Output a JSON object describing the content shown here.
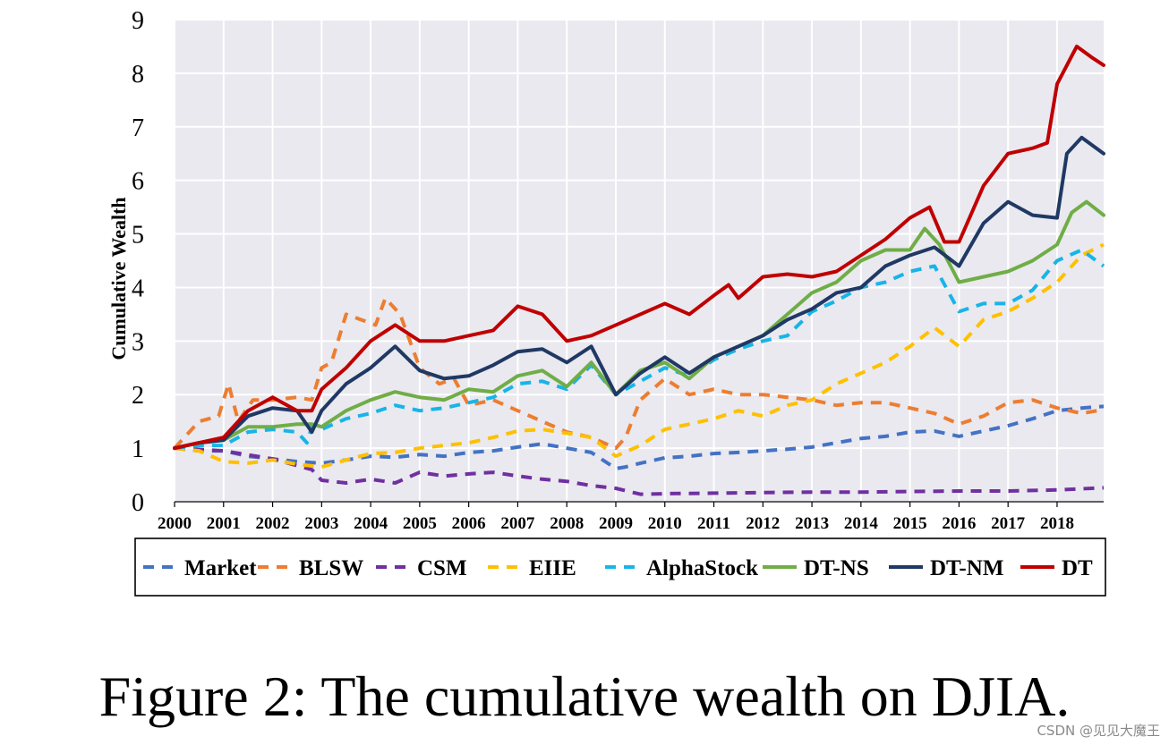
{
  "caption": "Figure 2: The cumulative wealth on DJIA.",
  "watermark": "CSDN @见见大魔王",
  "chart_data": {
    "type": "line",
    "title": "",
    "xlabel": "",
    "ylabel": "Cumulative Wealth",
    "ylim": [
      0,
      9
    ],
    "xlim": [
      2000,
      2018.95
    ],
    "yticks": [
      "0",
      "1",
      "2",
      "3",
      "4",
      "5",
      "6",
      "7",
      "8",
      "9"
    ],
    "xticks": [
      "2000",
      "2001",
      "2002",
      "2003",
      "2004",
      "2005",
      "2006",
      "2007",
      "2008",
      "2009",
      "2010",
      "2011",
      "2012",
      "2013",
      "2014",
      "2015",
      "2016",
      "2017",
      "2018"
    ],
    "grid": true,
    "legend_position": "bottom",
    "series": [
      {
        "name": "Market",
        "color": "#4472c4",
        "dash": "dashed",
        "x": [
          2000,
          2000.5,
          2001,
          2001.5,
          2002,
          2002.5,
          2003,
          2003.5,
          2004,
          2004.5,
          2005,
          2005.5,
          2006,
          2006.5,
          2007,
          2007.5,
          2008,
          2008.5,
          2009,
          2009.2,
          2009.5,
          2010,
          2010.5,
          2011,
          2011.5,
          2012,
          2012.5,
          2013,
          2013.5,
          2014,
          2014.5,
          2015,
          2015.5,
          2016,
          2016.5,
          2017,
          2017.5,
          2018,
          2018.5,
          2018.95
        ],
        "y": [
          1,
          0.95,
          0.95,
          0.85,
          0.8,
          0.75,
          0.72,
          0.78,
          0.85,
          0.83,
          0.88,
          0.85,
          0.92,
          0.95,
          1.02,
          1.08,
          1.0,
          0.92,
          0.62,
          0.65,
          0.72,
          0.82,
          0.85,
          0.9,
          0.92,
          0.95,
          0.98,
          1.02,
          1.1,
          1.18,
          1.22,
          1.3,
          1.32,
          1.22,
          1.32,
          1.42,
          1.55,
          1.7,
          1.75,
          1.78
        ]
      },
      {
        "name": "BLSW",
        "color": "#ed7d31",
        "dash": "dashed",
        "x": [
          2000,
          2000.5,
          2000.9,
          2001.1,
          2001.3,
          2001.6,
          2002,
          2002.5,
          2002.8,
          2003,
          2003.2,
          2003.5,
          2003.8,
          2004.1,
          2004.3,
          2004.6,
          2005,
          2005.4,
          2005.7,
          2006,
          2006.5,
          2007,
          2007.5,
          2008,
          2008.5,
          2009,
          2009.2,
          2009.5,
          2010,
          2010.5,
          2011,
          2011.5,
          2012,
          2012.5,
          2013,
          2013.5,
          2014,
          2014.5,
          2015,
          2015.5,
          2016,
          2016.5,
          2017,
          2017.5,
          2018,
          2018.5,
          2018.95
        ],
        "y": [
          1,
          1.5,
          1.6,
          2.2,
          1.5,
          1.9,
          1.9,
          1.95,
          1.9,
          2.5,
          2.6,
          3.5,
          3.4,
          3.3,
          3.8,
          3.5,
          2.5,
          2.2,
          2.3,
          1.8,
          1.9,
          1.7,
          1.5,
          1.3,
          1.2,
          1.0,
          1.2,
          1.9,
          2.3,
          2.0,
          2.1,
          2.0,
          2.0,
          1.95,
          1.9,
          1.8,
          1.85,
          1.85,
          1.75,
          1.65,
          1.45,
          1.6,
          1.85,
          1.9,
          1.75,
          1.65,
          1.72
        ]
      },
      {
        "name": "CSM",
        "color": "#7030a0",
        "dash": "dashed",
        "x": [
          2000,
          2001,
          2002,
          2002.8,
          2003,
          2003.5,
          2004,
          2004.5,
          2005,
          2005.5,
          2006,
          2006.5,
          2007,
          2007.5,
          2008,
          2008.5,
          2009,
          2009.5,
          2010,
          2011,
          2012,
          2013,
          2014,
          2015,
          2016,
          2017,
          2018,
          2018.95
        ],
        "y": [
          1,
          0.95,
          0.8,
          0.6,
          0.4,
          0.35,
          0.42,
          0.35,
          0.55,
          0.48,
          0.52,
          0.55,
          0.48,
          0.42,
          0.38,
          0.3,
          0.25,
          0.14,
          0.15,
          0.16,
          0.17,
          0.18,
          0.18,
          0.19,
          0.2,
          0.2,
          0.22,
          0.26
        ]
      },
      {
        "name": "EIIE",
        "color": "#ffc000",
        "dash": "dashed",
        "x": [
          2000,
          2000.5,
          2001,
          2001.5,
          2002,
          2002.5,
          2003,
          2003.5,
          2004,
          2004.5,
          2005,
          2005.5,
          2006,
          2006.5,
          2007,
          2007.5,
          2008,
          2008.5,
          2009,
          2009.5,
          2010,
          2010.5,
          2011,
          2011.5,
          2012,
          2012.5,
          2013,
          2013.5,
          2014,
          2014.5,
          2015,
          2015.5,
          2016,
          2016.5,
          2017,
          2017.5,
          2018,
          2018.5,
          2018.95
        ],
        "y": [
          1,
          0.95,
          0.75,
          0.72,
          0.78,
          0.7,
          0.65,
          0.78,
          0.9,
          0.92,
          1.0,
          1.05,
          1.1,
          1.2,
          1.32,
          1.35,
          1.28,
          1.2,
          0.85,
          1.05,
          1.35,
          1.45,
          1.55,
          1.7,
          1.6,
          1.8,
          1.9,
          2.2,
          2.4,
          2.6,
          2.9,
          3.25,
          2.9,
          3.4,
          3.55,
          3.8,
          4.1,
          4.6,
          4.8
        ]
      },
      {
        "name": "AlphaStock",
        "color": "#18b4e8",
        "dash": "dashed",
        "x": [
          2000,
          2000.5,
          2001,
          2001.5,
          2002,
          2002.5,
          2002.7,
          2002.8,
          2003,
          2003.5,
          2004,
          2004.5,
          2005,
          2005.5,
          2006,
          2006.5,
          2007,
          2007.5,
          2008,
          2008.5,
          2009,
          2009.5,
          2010,
          2010.5,
          2011,
          2011.5,
          2012,
          2012.5,
          2013,
          2013.5,
          2014,
          2014.5,
          2015,
          2015.5,
          2016,
          2016.5,
          2017,
          2017.5,
          2018,
          2018.5,
          2018.95
        ],
        "y": [
          1,
          1.05,
          1.05,
          1.3,
          1.35,
          1.3,
          1.1,
          1.4,
          1.35,
          1.55,
          1.65,
          1.8,
          1.7,
          1.75,
          1.85,
          1.95,
          2.2,
          2.25,
          2.1,
          2.55,
          2.0,
          2.25,
          2.5,
          2.35,
          2.65,
          2.85,
          3.0,
          3.1,
          3.55,
          3.75,
          4.0,
          4.1,
          4.3,
          4.4,
          3.55,
          3.7,
          3.7,
          3.95,
          4.5,
          4.7,
          4.4
        ]
      },
      {
        "name": "DT-NS",
        "color": "#70ad47",
        "dash": "solid",
        "x": [
          2000,
          2000.5,
          2001,
          2001.5,
          2002,
          2002.5,
          2002.8,
          2003,
          2003.5,
          2004,
          2004.5,
          2005,
          2005.5,
          2006,
          2006.5,
          2007,
          2007.5,
          2008,
          2008.5,
          2009,
          2009.5,
          2010,
          2010.5,
          2011,
          2011.5,
          2012,
          2012.5,
          2013,
          2013.5,
          2014,
          2014.5,
          2015,
          2015.3,
          2015.6,
          2016,
          2016.5,
          2017,
          2017.5,
          2018,
          2018.3,
          2018.6,
          2018.95
        ],
        "y": [
          1,
          1.1,
          1.15,
          1.4,
          1.4,
          1.45,
          1.45,
          1.4,
          1.7,
          1.9,
          2.05,
          1.95,
          1.9,
          2.1,
          2.05,
          2.35,
          2.45,
          2.15,
          2.6,
          2.0,
          2.45,
          2.6,
          2.3,
          2.7,
          2.9,
          3.1,
          3.5,
          3.9,
          4.1,
          4.5,
          4.7,
          4.7,
          5.1,
          4.8,
          4.1,
          4.2,
          4.3,
          4.5,
          4.8,
          5.4,
          5.6,
          5.35
        ]
      },
      {
        "name": "DT-NM",
        "color": "#203864",
        "dash": "solid",
        "x": [
          2000,
          2000.5,
          2001,
          2001.5,
          2002,
          2002.5,
          2002.8,
          2003,
          2003.5,
          2004,
          2004.5,
          2005,
          2005.5,
          2006,
          2006.5,
          2007,
          2007.5,
          2008,
          2008.5,
          2009,
          2009.5,
          2010,
          2010.5,
          2011,
          2011.5,
          2012,
          2012.5,
          2013,
          2013.5,
          2014,
          2014.5,
          2015,
          2015.5,
          2016,
          2016.5,
          2017,
          2017.5,
          2018,
          2018.2,
          2018.5,
          2018.95
        ],
        "y": [
          1,
          1.1,
          1.15,
          1.6,
          1.75,
          1.7,
          1.3,
          1.7,
          2.2,
          2.5,
          2.9,
          2.45,
          2.3,
          2.35,
          2.55,
          2.8,
          2.85,
          2.6,
          2.9,
          2.0,
          2.4,
          2.7,
          2.4,
          2.7,
          2.9,
          3.1,
          3.4,
          3.6,
          3.9,
          4.0,
          4.4,
          4.6,
          4.75,
          4.4,
          5.2,
          5.6,
          5.35,
          5.3,
          6.5,
          6.8,
          6.5
        ]
      },
      {
        "name": "DT",
        "color": "#c00000",
        "dash": "solid",
        "x": [
          2000,
          2000.5,
          2001,
          2001.5,
          2002,
          2002.5,
          2002.8,
          2003,
          2003.5,
          2004,
          2004.5,
          2005,
          2005.5,
          2006,
          2006.5,
          2007,
          2007.5,
          2008,
          2008.5,
          2009,
          2009.5,
          2010,
          2010.5,
          2011,
          2011.3,
          2011.5,
          2012,
          2012.5,
          2013,
          2013.5,
          2014,
          2014.5,
          2015,
          2015.4,
          2015.7,
          2016,
          2016.5,
          2017,
          2017.5,
          2017.8,
          2018,
          2018.4,
          2018.7,
          2018.95
        ],
        "y": [
          1,
          1.1,
          1.2,
          1.7,
          1.95,
          1.7,
          1.7,
          2.1,
          2.5,
          3.0,
          3.3,
          3.0,
          3.0,
          3.1,
          3.2,
          3.65,
          3.5,
          3.0,
          3.1,
          3.3,
          3.5,
          3.7,
          3.5,
          3.85,
          4.05,
          3.8,
          4.2,
          4.25,
          4.2,
          4.3,
          4.6,
          4.9,
          5.3,
          5.5,
          4.85,
          4.85,
          5.9,
          6.5,
          6.6,
          6.7,
          7.8,
          8.5,
          8.3,
          8.15
        ]
      }
    ]
  }
}
